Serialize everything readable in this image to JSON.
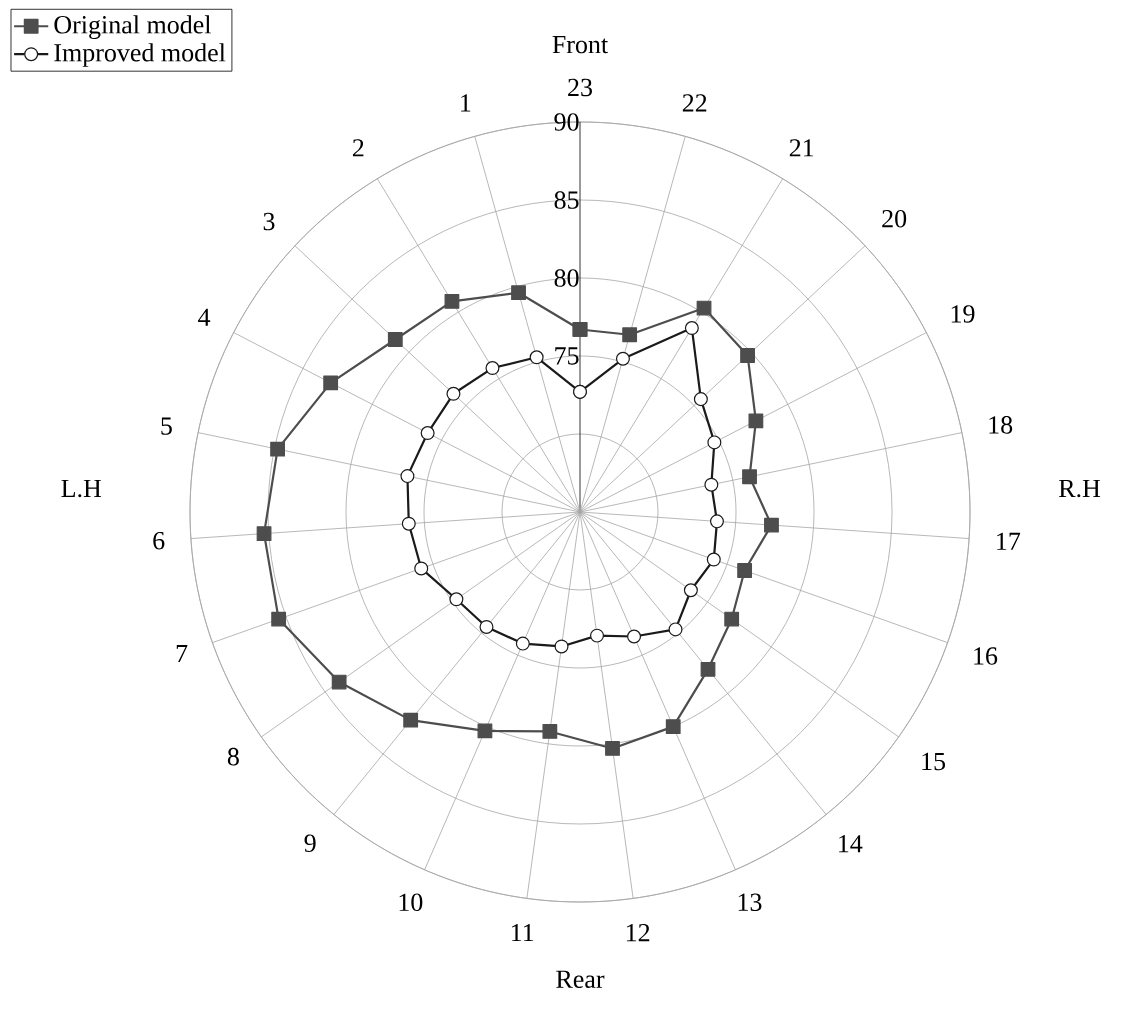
{
  "chart_data": {
    "type": "radar",
    "categories": [
      "23",
      "22",
      "21",
      "20",
      "19",
      "18",
      "17",
      "16",
      "15",
      "14",
      "13",
      "12",
      "11",
      "10",
      "9",
      "8",
      "7",
      "6",
      "5",
      "4",
      "3",
      "2",
      "1"
    ],
    "series": [
      {
        "name": "Original model",
        "color": "#4d4d4d",
        "marker": "square",
        "values": [
          76.7,
          76.8,
          80.3,
          79.7,
          77.7,
          76.1,
          77.3,
          76.2,
          76.9,
          78.0,
          80.0,
          80.3,
          79.2,
          80.3,
          82.2,
          83.9,
          85.5,
          85.3,
          84.8,
          83.0,
          81.2,
          80.8,
          79.6
        ]
      },
      {
        "name": "Improved model",
        "color": "#1a1a1a",
        "marker": "circle",
        "values": [
          72.7,
          75.2,
          78.8,
          75.6,
          74.7,
          73.6,
          73.8,
          74.1,
          73.7,
          74.7,
          73.7,
          73.0,
          73.7,
          74.2,
          74.5,
          74.7,
          75.8,
          76.0,
          76.3,
          76.0,
          76.1,
          75.8,
          75.3
        ]
      }
    ],
    "ylim": [
      65,
      90
    ],
    "yticks": [
      75,
      80,
      85,
      90
    ],
    "grid": true,
    "legend": "top left",
    "annotations": [
      "Front",
      "R.H",
      "Rear",
      "L.H"
    ]
  }
}
